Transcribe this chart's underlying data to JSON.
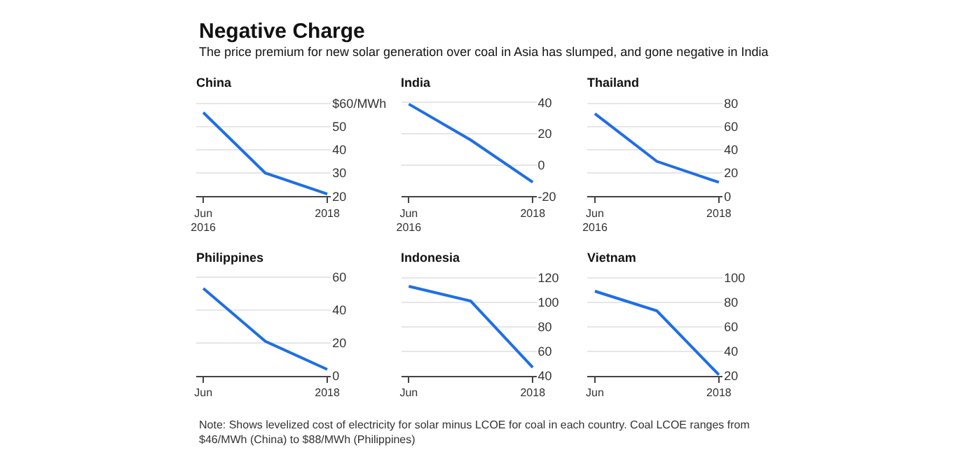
{
  "chart_data": [
    {
      "type": "line",
      "title": "China",
      "annotations": [
        "Negative Charge",
        "The price premium for new solar generation over coal in Asia has slumped, and gone negative in India"
      ],
      "categories": [
        "Jun\n2016",
        null,
        "2018"
      ],
      "series": [
        {
          "color": "#1f6fe5",
          "values": [
            56,
            30,
            21
          ]
        }
      ],
      "ylim": [
        20,
        61
      ],
      "yticks": [
        20,
        30,
        40,
        50,
        {
          "value": 60,
          "label": "$60/MWh"
        }
      ],
      "grid": "y"
    },
    {
      "type": "line",
      "title": "India",
      "categories": [
        "Jun\n2016",
        null,
        "2018"
      ],
      "series": [
        {
          "color": "#1f6fe5",
          "values": [
            39,
            16,
            -11
          ]
        }
      ],
      "ylim": [
        -20,
        41
      ],
      "yticks": [
        -20,
        0,
        20,
        40
      ],
      "grid": "y"
    },
    {
      "type": "line",
      "title": "Thailand",
      "categories": [
        "Jun\n2016",
        null,
        "2018"
      ],
      "series": [
        {
          "color": "#1f6fe5",
          "values": [
            71,
            30,
            12
          ]
        }
      ],
      "ylim": [
        0,
        82
      ],
      "yticks": [
        0,
        20,
        40,
        60,
        80
      ],
      "grid": "y"
    },
    {
      "type": "line",
      "title": "Philippines",
      "categories": [
        "Jun",
        null,
        "2018"
      ],
      "series": [
        {
          "color": "#1f6fe5",
          "values": [
            53,
            21,
            4
          ]
        }
      ],
      "ylim": [
        0,
        61
      ],
      "yticks": [
        0,
        20,
        40,
        60
      ],
      "grid": "y"
    },
    {
      "type": "line",
      "title": "Indonesia",
      "categories": [
        "Jun",
        null,
        "2018"
      ],
      "series": [
        {
          "color": "#1f6fe5",
          "values": [
            113,
            101,
            47
          ]
        }
      ],
      "ylim": [
        40,
        122
      ],
      "yticks": [
        40,
        60,
        80,
        100,
        120
      ],
      "grid": "y"
    },
    {
      "type": "line",
      "title": "Vietnam",
      "categories": [
        "Jun",
        null,
        "2018"
      ],
      "series": [
        {
          "color": "#1f6fe5",
          "values": [
            89,
            73,
            21
          ]
        }
      ],
      "ylim": [
        20,
        102
      ],
      "yticks": [
        20,
        40,
        60,
        80,
        100
      ],
      "grid": "y",
      "annotations": [
        "Note: Shows levelized cost of electricity for solar minus LCOE for coal in each country. Coal LCOE ranges from $46/MWh (China) to $88/MWh (Philippines)"
      ]
    }
  ]
}
